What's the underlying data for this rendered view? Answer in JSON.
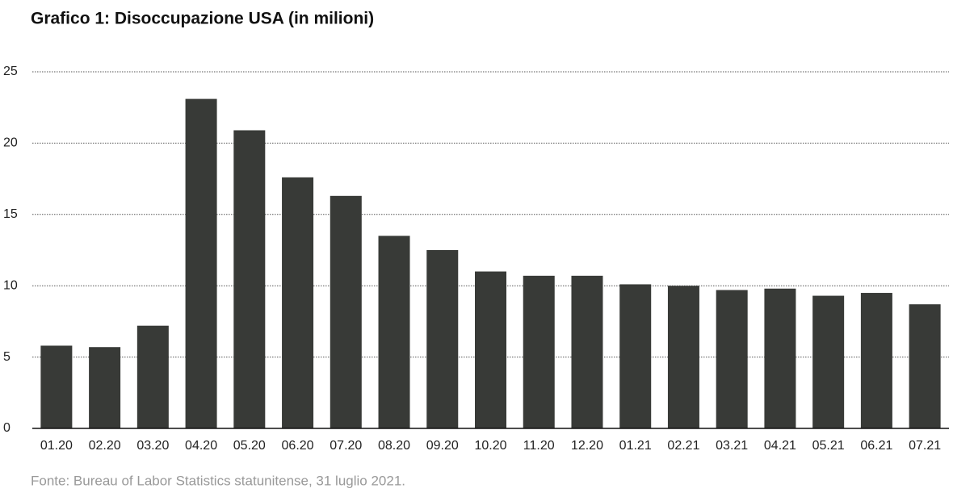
{
  "chart_data": {
    "type": "bar",
    "title": "Grafico 1: Disoccupazione USA (in milioni)",
    "categories": [
      "01.20",
      "02.20",
      "03.20",
      "04.20",
      "05.20",
      "06.20",
      "07.20",
      "08.20",
      "09.20",
      "10.20",
      "11.20",
      "12.20",
      "01.21",
      "02.21",
      "03.21",
      "04.21",
      "05.21",
      "06.21",
      "07.21"
    ],
    "values": [
      5.8,
      5.7,
      7.2,
      23.1,
      20.9,
      17.6,
      16.3,
      13.5,
      12.5,
      11.0,
      10.7,
      10.7,
      10.1,
      10.0,
      9.7,
      9.8,
      9.3,
      9.5,
      8.7
    ],
    "color": "#383a37",
    "ylim": [
      0,
      25
    ],
    "yticks": [
      0,
      5,
      10,
      15,
      20,
      25
    ],
    "grid": true,
    "source": "Fonte: Bureau of Labor Statistics statunitense, 31 luglio 2021."
  }
}
